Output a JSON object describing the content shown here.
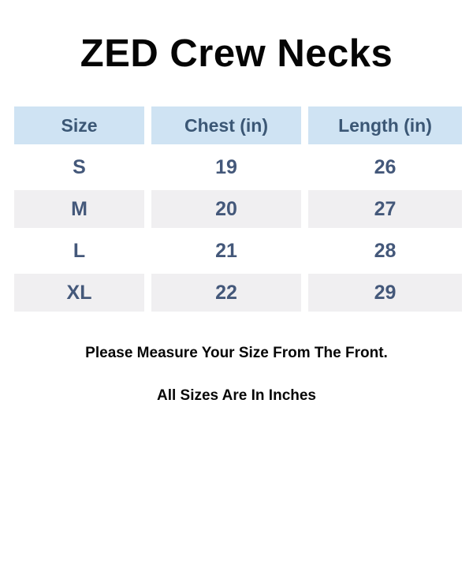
{
  "page": {
    "title": "ZED Crew Necks",
    "notes": {
      "measure": "Please Measure Your Size From The Front.",
      "units": "All Sizes Are In Inches"
    }
  },
  "size_chart": {
    "columns": [
      "Size",
      "Chest (in)",
      "Length (in)"
    ],
    "rows": [
      [
        "S",
        "19",
        "26"
      ],
      [
        "M",
        "20",
        "27"
      ],
      [
        "L",
        "21",
        "28"
      ],
      [
        "XL",
        "22",
        "29"
      ]
    ]
  },
  "chart_data": {
    "type": "table",
    "title": "ZED Crew Necks",
    "columns": [
      "Size",
      "Chest (in)",
      "Length (in)"
    ],
    "rows": [
      {
        "size": "S",
        "chest_in": 19,
        "length_in": 26
      },
      {
        "size": "M",
        "chest_in": 20,
        "length_in": 27
      },
      {
        "size": "L",
        "chest_in": 21,
        "length_in": 28
      },
      {
        "size": "XL",
        "chest_in": 22,
        "length_in": 29
      }
    ],
    "annotations": [
      "Please Measure Your Size From The Front.",
      "All Sizes Are In Inches"
    ]
  },
  "colors": {
    "header_bg": "#cfe3f3",
    "header_text": "#3b5775",
    "cell_text": "#44587a",
    "row_alt_bg": "#f0eff1",
    "row_bg": "#ffffff",
    "title_text": "#050505",
    "page_bg": "#ffffff"
  }
}
